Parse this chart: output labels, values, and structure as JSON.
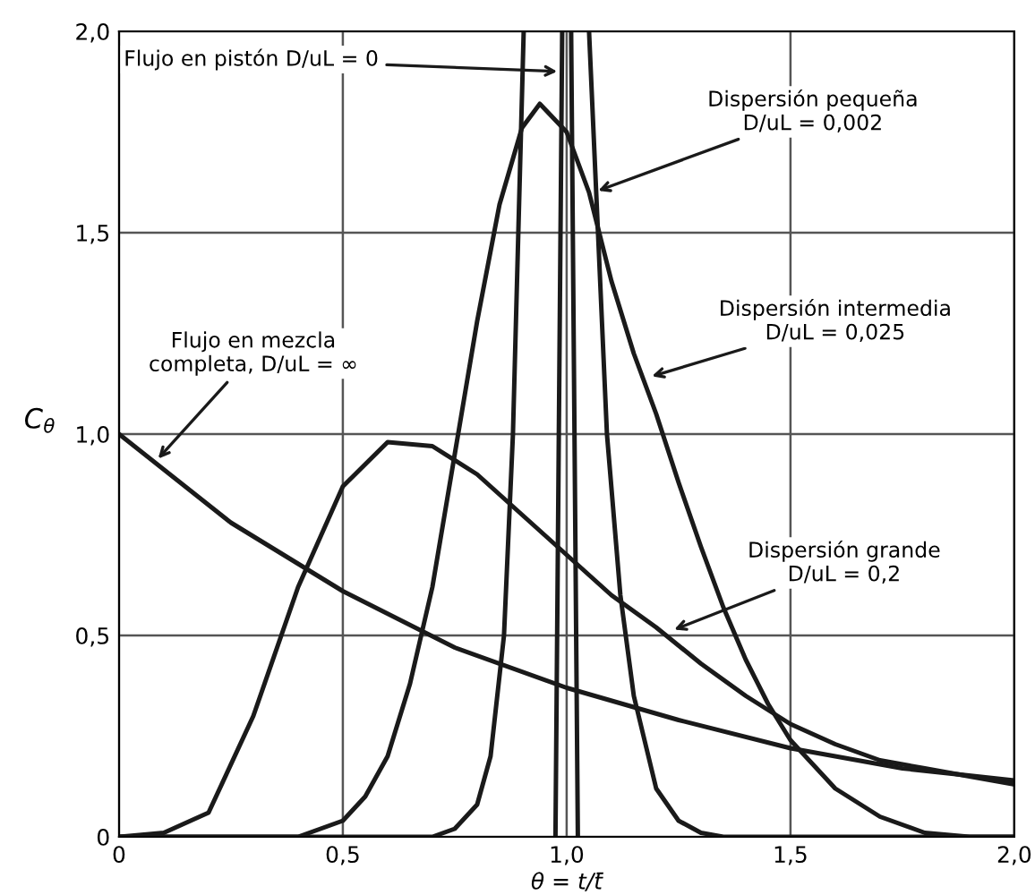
{
  "chart_data": {
    "type": "line",
    "xlabel": "θ = t/t̄",
    "ylabel": "C$_{θ}$",
    "xlim": [
      0,
      2.0
    ],
    "ylim": [
      0,
      2.0
    ],
    "xticks": [
      0,
      {
        "value": 0.5,
        "label": "0,5"
      },
      {
        "value": 1.0,
        "label": "1,0"
      },
      {
        "value": 1.5,
        "label": "1,5"
      },
      {
        "value": 2.0,
        "label": "2,0"
      }
    ],
    "yticks": [
      0,
      {
        "value": 0.5,
        "label": "0,5"
      },
      {
        "value": 1.0,
        "label": "1,0"
      },
      {
        "value": 1.5,
        "label": "1,5"
      },
      {
        "value": 2.0,
        "label": "2,0"
      }
    ],
    "grid": true,
    "legend": false,
    "marker": "none",
    "line_style": "solid",
    "series": [
      {
        "color": "#1a1a1a",
        "x": [
          0,
          0.25,
          0.5,
          0.75,
          1.0,
          1.25,
          1.5,
          1.75,
          2.0
        ],
        "values": [
          1.0,
          0.78,
          0.61,
          0.47,
          0.37,
          0.29,
          0.22,
          0.17,
          0.14
        ]
      },
      {
        "color": "#1a1a1a",
        "x": [
          0,
          0.1,
          0.2,
          0.3,
          0.4,
          0.5,
          0.6,
          0.7,
          0.8,
          0.9,
          1.0,
          1.1,
          1.2,
          1.3,
          1.4,
          1.5,
          1.6,
          1.7,
          1.8,
          1.9,
          2.0
        ],
        "values": [
          0,
          0.01,
          0.06,
          0.3,
          0.62,
          0.87,
          0.98,
          0.97,
          0.9,
          0.8,
          0.7,
          0.6,
          0.52,
          0.43,
          0.35,
          0.28,
          0.23,
          0.19,
          0.17,
          0.15,
          0.13
        ]
      },
      {
        "color": "#1a1a1a",
        "x": [
          0,
          0.4,
          0.5,
          0.55,
          0.6,
          0.65,
          0.7,
          0.75,
          0.8,
          0.85,
          0.9,
          0.94,
          1.0,
          1.05,
          1.1,
          1.15,
          1.2,
          1.25,
          1.3,
          1.35,
          1.4,
          1.45,
          1.5,
          1.6,
          1.7,
          1.8,
          1.9,
          2.0
        ],
        "values": [
          0,
          0,
          0.04,
          0.1,
          0.2,
          0.38,
          0.62,
          0.95,
          1.28,
          1.57,
          1.76,
          1.82,
          1.75,
          1.6,
          1.38,
          1.2,
          1.05,
          0.88,
          0.72,
          0.57,
          0.44,
          0.33,
          0.24,
          0.12,
          0.05,
          0.01,
          0,
          0
        ]
      },
      {
        "color": "#1a1a1a",
        "x": [
          0,
          0.7,
          0.75,
          0.8,
          0.83,
          0.86,
          0.88,
          0.904,
          0.95,
          1.05,
          1.07,
          1.09,
          1.12,
          1.15,
          1.2,
          1.25,
          1.3,
          1.35,
          2.0
        ],
        "values": [
          0,
          0,
          0.02,
          0.08,
          0.2,
          0.5,
          1.0,
          2.0,
          null,
          2.0,
          1.5,
          1.0,
          0.6,
          0.35,
          0.12,
          0.04,
          0.01,
          0,
          0
        ]
      },
      {
        "color": "#1a1a1a",
        "x": [
          0.975,
          0.99,
          1.0,
          1.01,
          1.025
        ],
        "values": [
          0,
          2.0,
          null,
          2.0,
          0
        ]
      }
    ],
    "annotations": [
      {
        "text": "Flujo en mezcla\ncompleta, D/uL = ∞",
        "x": 0.08,
        "y": 0.93
      },
      {
        "text": "Flujo en pistón D/uL = 0",
        "x": 0.99,
        "y": 1.9
      },
      {
        "text": "Dispersión pequeña\nD/uL = 0,002",
        "x": 1.06,
        "y": 1.6
      },
      {
        "text": "Dispersión intermedia\nD/uL = 0,025",
        "x": 1.18,
        "y": 1.14
      },
      {
        "text": "Dispersión grande\nD/uL = 0,2",
        "x": 1.23,
        "y": 0.51
      }
    ]
  }
}
